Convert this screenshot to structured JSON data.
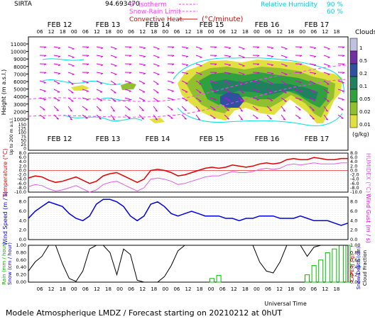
{
  "header": {
    "station": "SIRTA",
    "coords": "94.693470",
    "legend_isotherm": "0° isotherm",
    "legend_snow_rain": "Snow-Rain Limit",
    "legend_convective": "Convective Heat.",
    "convective_unit": "(°C/minute)",
    "rh_label": "Relative Humidity",
    "rh_90": "90 %",
    "rh_60": "60 %"
  },
  "footer": {
    "title": "Modele Atmospherique LMDZ / Forecast starting on 20210212 at 0hUT",
    "universal_time": "Universal Time"
  },
  "colors": {
    "wind_arrows": "#e000e0",
    "temperature": "#e00000",
    "humidex": "#e060e0",
    "wind_speed": "#0000e0",
    "precip_snow": "#00c000",
    "rh_contour": "#00e0e0",
    "fraction_line": "#000000"
  },
  "chart_data": [
    {
      "type": "heatmap",
      "panel": "clouds",
      "ylabel": "Height (m a.s.l.)",
      "ylabel2": "Up to 200 m a.s.l.",
      "yticks_upper": [
        11000,
        10000,
        9000,
        8000,
        7000,
        6000,
        5000,
        4000,
        3000,
        2000,
        1000
      ],
      "yticks_lower": [
        150,
        125,
        100,
        75,
        50,
        25,
        0
      ],
      "day_labels": [
        "FEB 12",
        "FEB 13",
        "FEB 14",
        "FEB 15",
        "FEB 16",
        "FEB 17"
      ],
      "hour_ticks": [
        "06",
        "12",
        "18",
        "00",
        "06",
        "12",
        "18",
        "00",
        "06",
        "12",
        "18",
        "00",
        "06",
        "12",
        "18",
        "00",
        "06",
        "12",
        "18",
        "00",
        "06",
        "12",
        "18",
        "00",
        "06",
        "12",
        "18"
      ],
      "colorbar_title": "Clouds",
      "colorbar_unit": "(g/kg)",
      "colorbar_labels": [
        "1",
        "0.5",
        "0.2",
        "0.1",
        "0.05",
        "0.02",
        "0.01"
      ],
      "colorbar_colors": [
        "#c0c0e0",
        "#7030a0",
        "#3050a0",
        "#208060",
        "#30a040",
        "#90c030",
        "#e0e040"
      ]
    },
    {
      "type": "line",
      "panel": "temperature",
      "ylabel": "Temperature (°C)",
      "ylabel2": "HUMIDEX (°C)",
      "yticks": [
        "8.0",
        "6.0",
        "4.0",
        "2.0",
        "0.0",
        "-2.0",
        "-4.0",
        "-6.0",
        "-8.0",
        "-10.0"
      ],
      "ylim": [
        -10,
        8
      ],
      "series": [
        {
          "values": [
            -3.5,
            -2.5,
            -3.0,
            -4.5,
            -5.5,
            -5.0,
            -4.0,
            -3.0,
            -4.5,
            -6.0,
            -5.0,
            -2.5,
            -1.5,
            -1.0,
            -2.5,
            -4.0,
            -5.5,
            -4.0,
            0.0,
            0.5,
            0.0,
            -1.0,
            -2.5,
            -2.0,
            -1.0,
            0.0,
            1.0,
            1.5,
            1.0,
            1.5,
            2.5,
            2.0,
            1.5,
            2.0,
            3.0,
            3.5,
            3.0,
            3.5,
            5.0,
            5.5,
            5.0,
            5.0,
            6.0,
            5.5,
            5.0,
            5.0,
            5.5,
            5.5
          ]
        },
        {
          "values": [
            -7.5,
            -6.5,
            -7.0,
            -8.5,
            -9.5,
            -9.0,
            -8.0,
            -7.0,
            -8.5,
            -10.0,
            -9.0,
            -6.5,
            -5.5,
            -5.0,
            -6.5,
            -8.0,
            -9.5,
            -8.0,
            -4.0,
            -3.5,
            -4.0,
            -5.0,
            -6.5,
            -6.0,
            -5.0,
            -4.0,
            -3.0,
            -2.5,
            -2.5,
            -1.5,
            -0.5,
            -1.0,
            -1.0,
            -0.5,
            0.5,
            1.0,
            0.5,
            1.0,
            2.5,
            3.0,
            2.5,
            3.0,
            3.5,
            3.0,
            3.0,
            3.0,
            3.5,
            3.5
          ]
        }
      ]
    },
    {
      "type": "line",
      "panel": "wind",
      "ylabel": "Wind Speed (m / s)",
      "ylabel2": "Wind Gust (m / s)",
      "yticks": [
        "8.0",
        "6.0",
        "4.0",
        "2.0",
        "0.0"
      ],
      "ylim": [
        0,
        9
      ],
      "series": [
        {
          "values": [
            4.5,
            6.0,
            7.0,
            8.0,
            7.5,
            7.0,
            5.5,
            4.5,
            4.0,
            5.0,
            7.5,
            8.5,
            8.5,
            8.0,
            7.0,
            5.0,
            4.0,
            5.0,
            7.5,
            8.0,
            7.0,
            5.5,
            5.0,
            5.5,
            6.0,
            5.5,
            5.0,
            5.0,
            5.0,
            4.5,
            4.5,
            4.0,
            4.5,
            4.5,
            5.0,
            5.0,
            5.0,
            4.5,
            4.5,
            4.5,
            5.0,
            4.5,
            4.0,
            4.0,
            4.0,
            3.5,
            3.0,
            3.5
          ]
        }
      ]
    },
    {
      "type": "line",
      "panel": "precip",
      "ylabel": "Rain (mm / hour)",
      "ylabel2": "Snow (cm / hour)",
      "ylabel3": "CAPE (J / g)",
      "ylabel4": "Snow Depth (cm)",
      "ylabel5": "Cloud Fraction",
      "yticks": [
        "1.00",
        "0.80",
        "0.60",
        "0.40",
        "0.20",
        "0.00"
      ],
      "ylim": [
        0,
        1
      ],
      "series": [
        {
          "values": [
            0.3,
            0.55,
            0.7,
            1.0,
            1.0,
            0.5,
            0.1,
            0.02,
            0.3,
            0.9,
            1.0,
            1.0,
            0.8,
            0.2,
            0.9,
            0.75,
            0.05,
            0.0,
            0.0,
            0.0,
            0.15,
            0.45,
            0.85,
            1.0,
            1.0,
            1.0,
            1.0,
            1.0,
            1.0,
            1.0,
            1.0,
            1.0,
            1.0,
            1.0,
            0.55,
            0.3,
            0.25,
            0.55,
            1.0,
            1.0,
            1.0,
            0.7,
            0.95,
            1.0,
            1.0,
            1.0,
            1.0,
            1.0
          ]
        },
        {
          "values": [
            0,
            0,
            0,
            0,
            0,
            0,
            0,
            0,
            0,
            0,
            0,
            0,
            0,
            0,
            0,
            0,
            0,
            0,
            0,
            0,
            0,
            0,
            0,
            0,
            0,
            0,
            0,
            0.1,
            0.18,
            0,
            0,
            0,
            0,
            0,
            0,
            0,
            0,
            0,
            0,
            0,
            0,
            0.2,
            0.45,
            0.6,
            0.8,
            0.9,
            1.0,
            1.0
          ]
        }
      ]
    }
  ]
}
